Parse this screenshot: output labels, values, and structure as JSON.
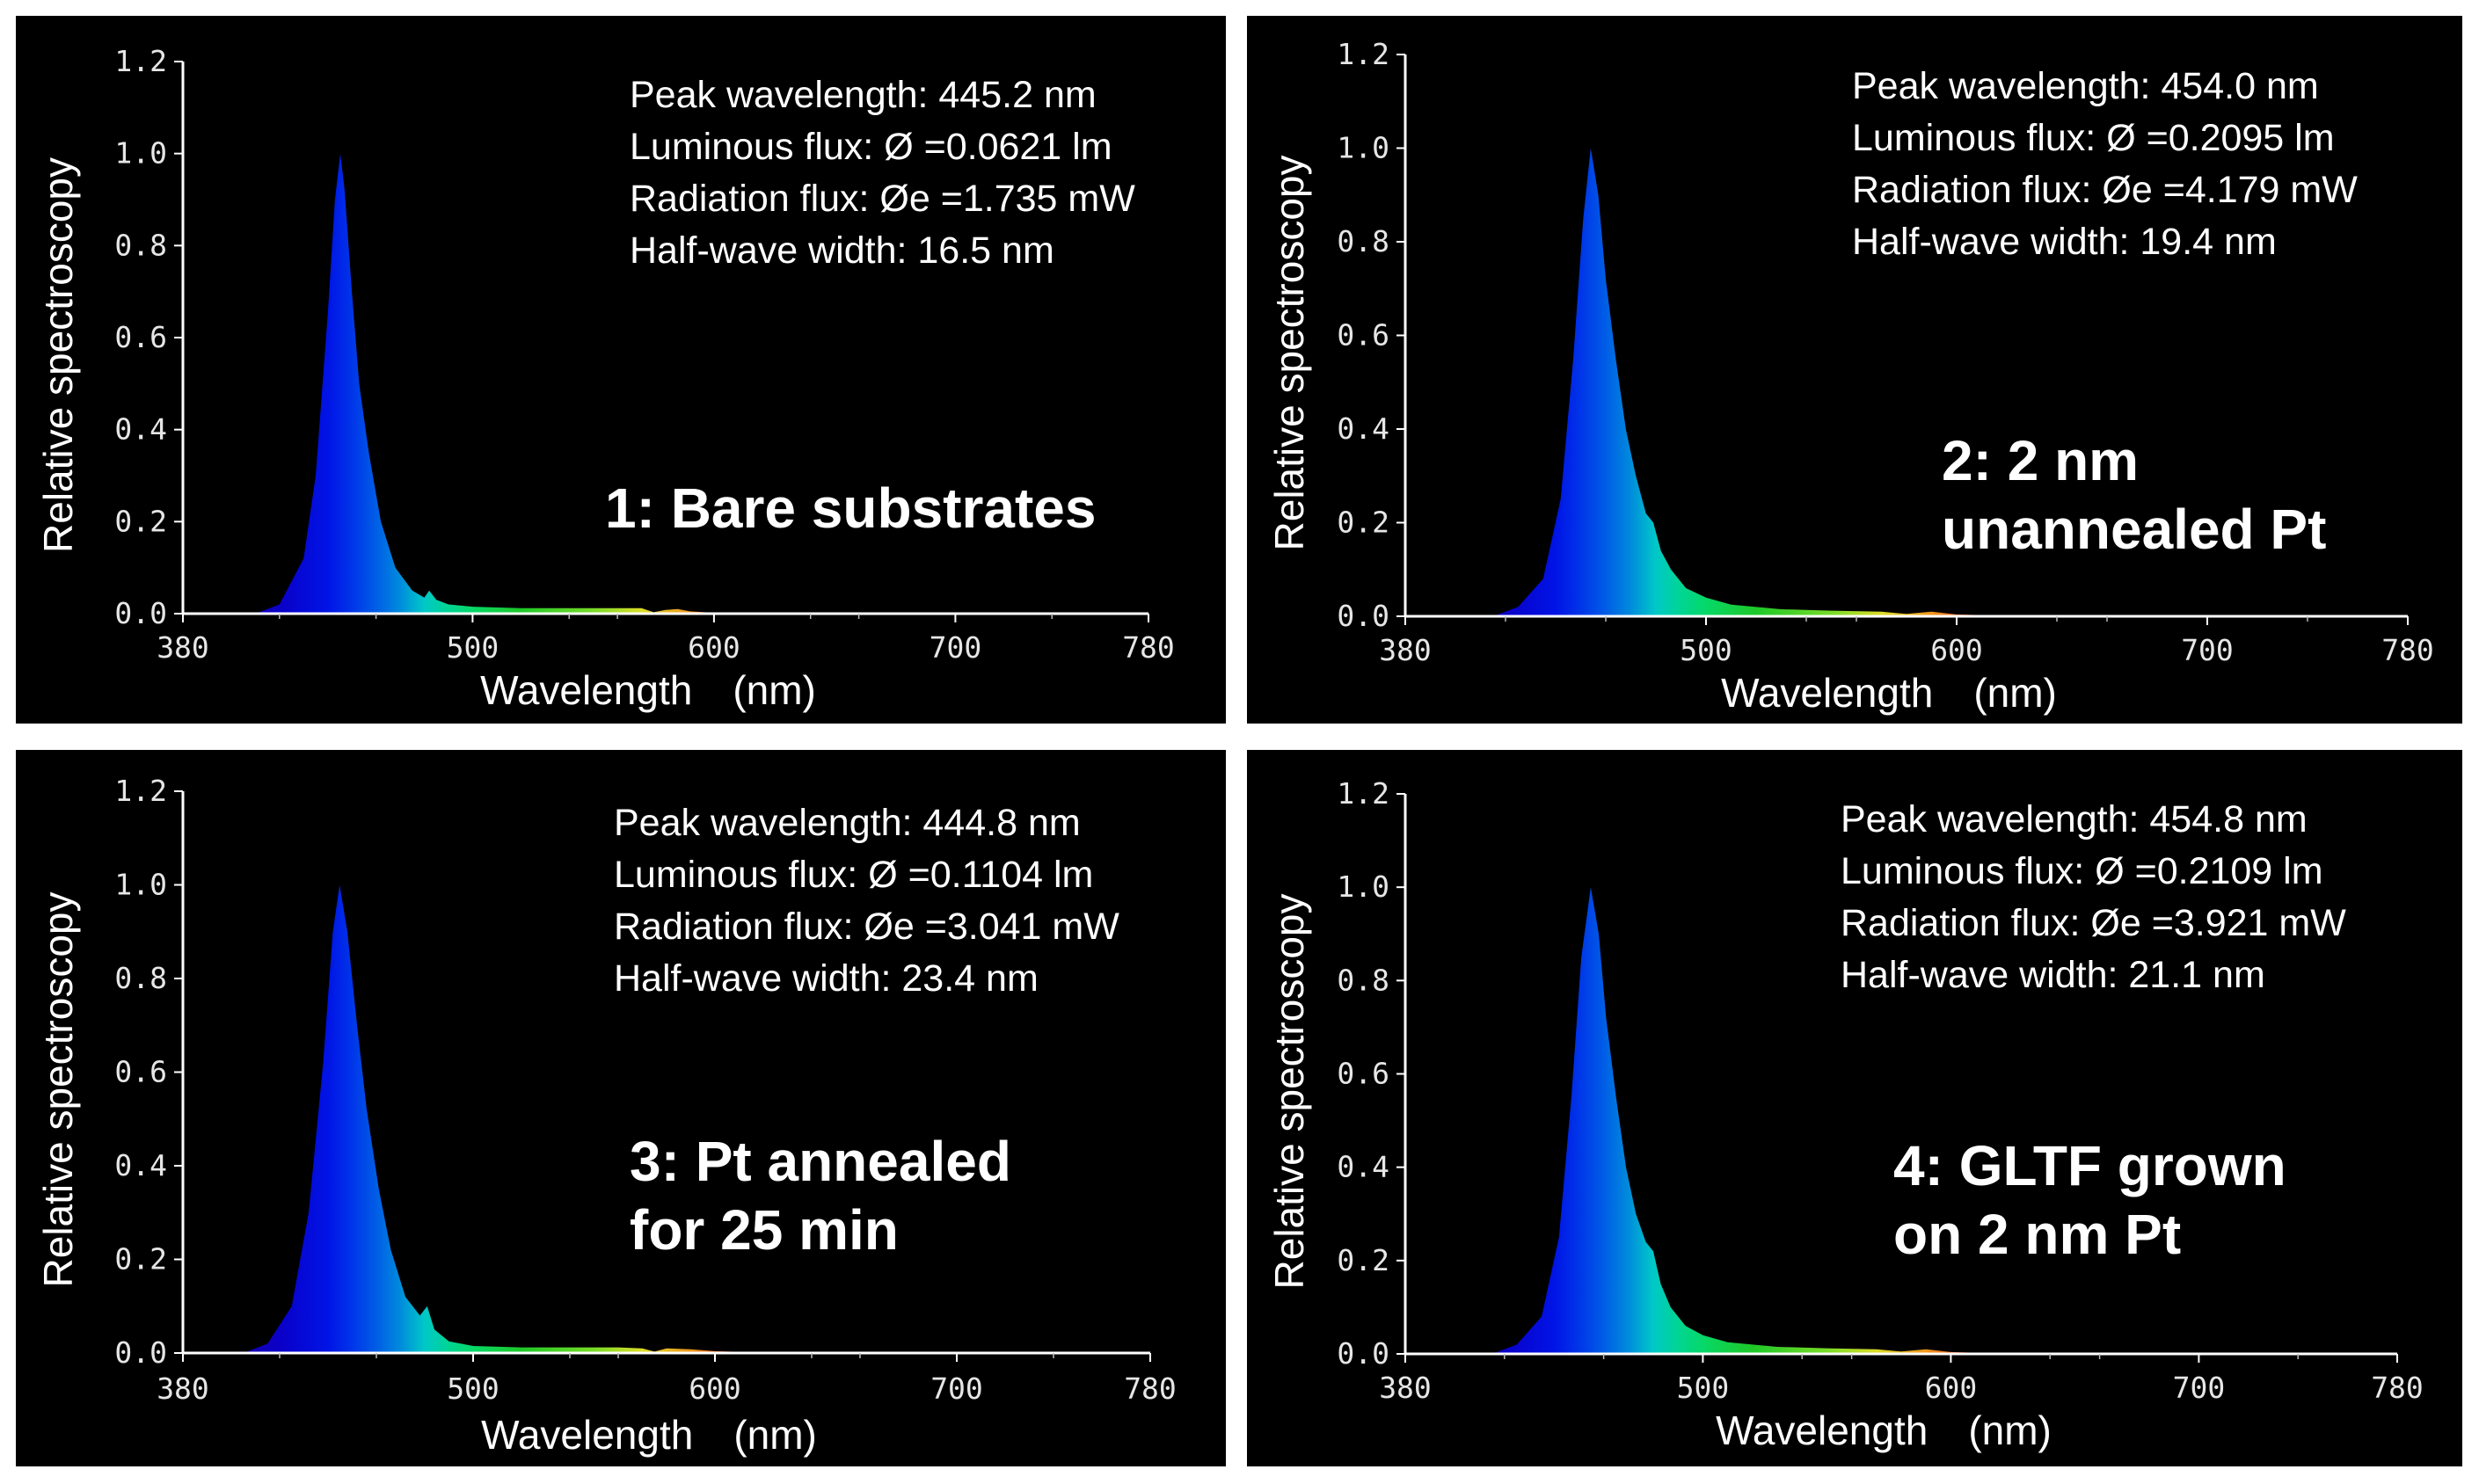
{
  "chart_data": [
    {
      "type": "area",
      "title": "1: Bare substrates",
      "caption_lines": [
        "1: Bare substrates"
      ],
      "xlabel": "Wavelength　(nm)",
      "ylabel": "Relative spectroscopy",
      "xlim": [
        380,
        780
      ],
      "ylim": [
        0,
        1.2
      ],
      "x_ticks": [
        "380",
        "500",
        "600",
        "700",
        "780"
      ],
      "y_ticks": [
        "0.0",
        "0.2",
        "0.4",
        "0.6",
        "0.8",
        "1.0",
        "1.2"
      ],
      "annotations": [
        "Peak wavelength: 445.2 nm",
        "Luminous flux: Ø =0.0621 lm",
        "Radiation flux: Øe =1.735 mW",
        "Half-wave width: 16.5 nm"
      ],
      "peak_wavelength_nm": 445.2,
      "half_wave_width_nm": 16.5,
      "series": [
        {
          "name": "spectrum",
          "x": [
            410,
            420,
            430,
            435,
            440,
            443,
            445.2,
            447,
            450,
            453,
            457,
            462,
            468,
            475,
            480,
            482,
            485,
            490,
            500,
            520,
            540,
            560,
            570,
            575,
            580,
            585,
            590,
            600,
            620,
            650
          ],
          "values": [
            0,
            0.02,
            0.12,
            0.3,
            0.65,
            0.9,
            1.0,
            0.92,
            0.7,
            0.5,
            0.35,
            0.2,
            0.1,
            0.05,
            0.035,
            0.05,
            0.03,
            0.02,
            0.015,
            0.012,
            0.012,
            0.012,
            0.012,
            0.003,
            0.008,
            0.01,
            0.005,
            0.002,
            0.001,
            0
          ]
        }
      ]
    },
    {
      "type": "area",
      "title": "2: 2 nm unannealed Pt",
      "caption_lines": [
        "2: 2 nm",
        "unannealed Pt"
      ],
      "xlabel": "Wavelength　(nm)",
      "ylabel": "Relative spectroscopy",
      "xlim": [
        380,
        780
      ],
      "ylim": [
        0,
        1.2
      ],
      "x_ticks": [
        "380",
        "500",
        "600",
        "700",
        "780"
      ],
      "y_ticks": [
        "0.0",
        "0.2",
        "0.4",
        "0.6",
        "0.8",
        "1.0",
        "1.2"
      ],
      "annotations": [
        "Peak wavelength: 454.0 nm",
        "Luminous flux: Ø =0.2095 lm",
        "Radiation flux: Øe =4.179 mW",
        "Half-wave width: 19.4 nm"
      ],
      "peak_wavelength_nm": 454.0,
      "half_wave_width_nm": 19.4,
      "series": [
        {
          "name": "spectrum",
          "x": [
            415,
            425,
            435,
            442,
            447,
            451,
            454,
            457,
            460,
            464,
            468,
            472,
            476,
            479,
            482,
            486,
            492,
            500,
            510,
            530,
            550,
            570,
            580,
            590,
            600,
            620,
            650
          ],
          "values": [
            0,
            0.02,
            0.08,
            0.25,
            0.55,
            0.85,
            1.0,
            0.9,
            0.72,
            0.55,
            0.4,
            0.3,
            0.22,
            0.2,
            0.14,
            0.1,
            0.06,
            0.04,
            0.025,
            0.015,
            0.012,
            0.01,
            0.005,
            0.01,
            0.004,
            0.001,
            0
          ]
        }
      ]
    },
    {
      "type": "area",
      "title": "3: Pt annealed for 25 min",
      "caption_lines": [
        "3: Pt annealed",
        "for 25 min"
      ],
      "xlabel": "Wavelength　(nm)",
      "ylabel": "Relative spectroscopy",
      "xlim": [
        380,
        780
      ],
      "ylim": [
        0,
        1.2
      ],
      "x_ticks": [
        "380",
        "500",
        "600",
        "700",
        "780"
      ],
      "y_ticks": [
        "0.0",
        "0.2",
        "0.4",
        "0.6",
        "0.8",
        "1.0",
        "1.2"
      ],
      "annotations": [
        "Peak wavelength: 444.8 nm",
        "Luminous flux: Ø =0.1104 lm",
        "Radiation flux: Øe =3.041 mW",
        "Half-wave width: 23.4 nm"
      ],
      "peak_wavelength_nm": 444.8,
      "half_wave_width_nm": 23.4,
      "series": [
        {
          "name": "spectrum",
          "x": [
            405,
            415,
            425,
            432,
            438,
            442,
            444.8,
            448,
            452,
            456,
            461,
            466,
            472,
            478,
            481,
            484,
            490,
            500,
            520,
            540,
            560,
            570,
            575,
            580,
            590,
            600,
            620,
            650
          ],
          "values": [
            0,
            0.02,
            0.1,
            0.3,
            0.62,
            0.9,
            1.0,
            0.9,
            0.7,
            0.52,
            0.35,
            0.22,
            0.12,
            0.08,
            0.1,
            0.05,
            0.025,
            0.015,
            0.012,
            0.012,
            0.012,
            0.01,
            0.003,
            0.01,
            0.008,
            0.004,
            0.001,
            0
          ]
        }
      ]
    },
    {
      "type": "area",
      "title": "4: GLTF grown on 2 nm Pt",
      "caption_lines": [
        "4: GLTF grown",
        "on 2 nm Pt"
      ],
      "xlabel": "Wavelength　(nm)",
      "ylabel": "Relative spectroscopy",
      "xlim": [
        380,
        780
      ],
      "ylim": [
        0,
        1.2
      ],
      "x_ticks": [
        "380",
        "500",
        "600",
        "700",
        "780"
      ],
      "y_ticks": [
        "0.0",
        "0.2",
        "0.4",
        "0.6",
        "0.8",
        "1.0",
        "1.2"
      ],
      "annotations": [
        "Peak wavelength: 454.8 nm",
        "Luminous flux: Ø =0.2109 lm",
        "Radiation flux: Øe =3.921 mW",
        "Half-wave width: 21.1 nm"
      ],
      "peak_wavelength_nm": 454.8,
      "half_wave_width_nm": 21.1,
      "series": [
        {
          "name": "spectrum",
          "x": [
            415,
            425,
            435,
            442,
            447,
            451,
            454.8,
            458,
            461,
            465,
            469,
            473,
            477,
            480,
            483,
            487,
            493,
            500,
            510,
            530,
            550,
            570,
            580,
            590,
            600,
            620,
            650
          ],
          "values": [
            0,
            0.02,
            0.08,
            0.25,
            0.55,
            0.85,
            1.0,
            0.9,
            0.72,
            0.55,
            0.4,
            0.3,
            0.24,
            0.22,
            0.15,
            0.1,
            0.06,
            0.04,
            0.025,
            0.015,
            0.012,
            0.01,
            0.005,
            0.01,
            0.004,
            0.001,
            0
          ]
        }
      ]
    }
  ]
}
